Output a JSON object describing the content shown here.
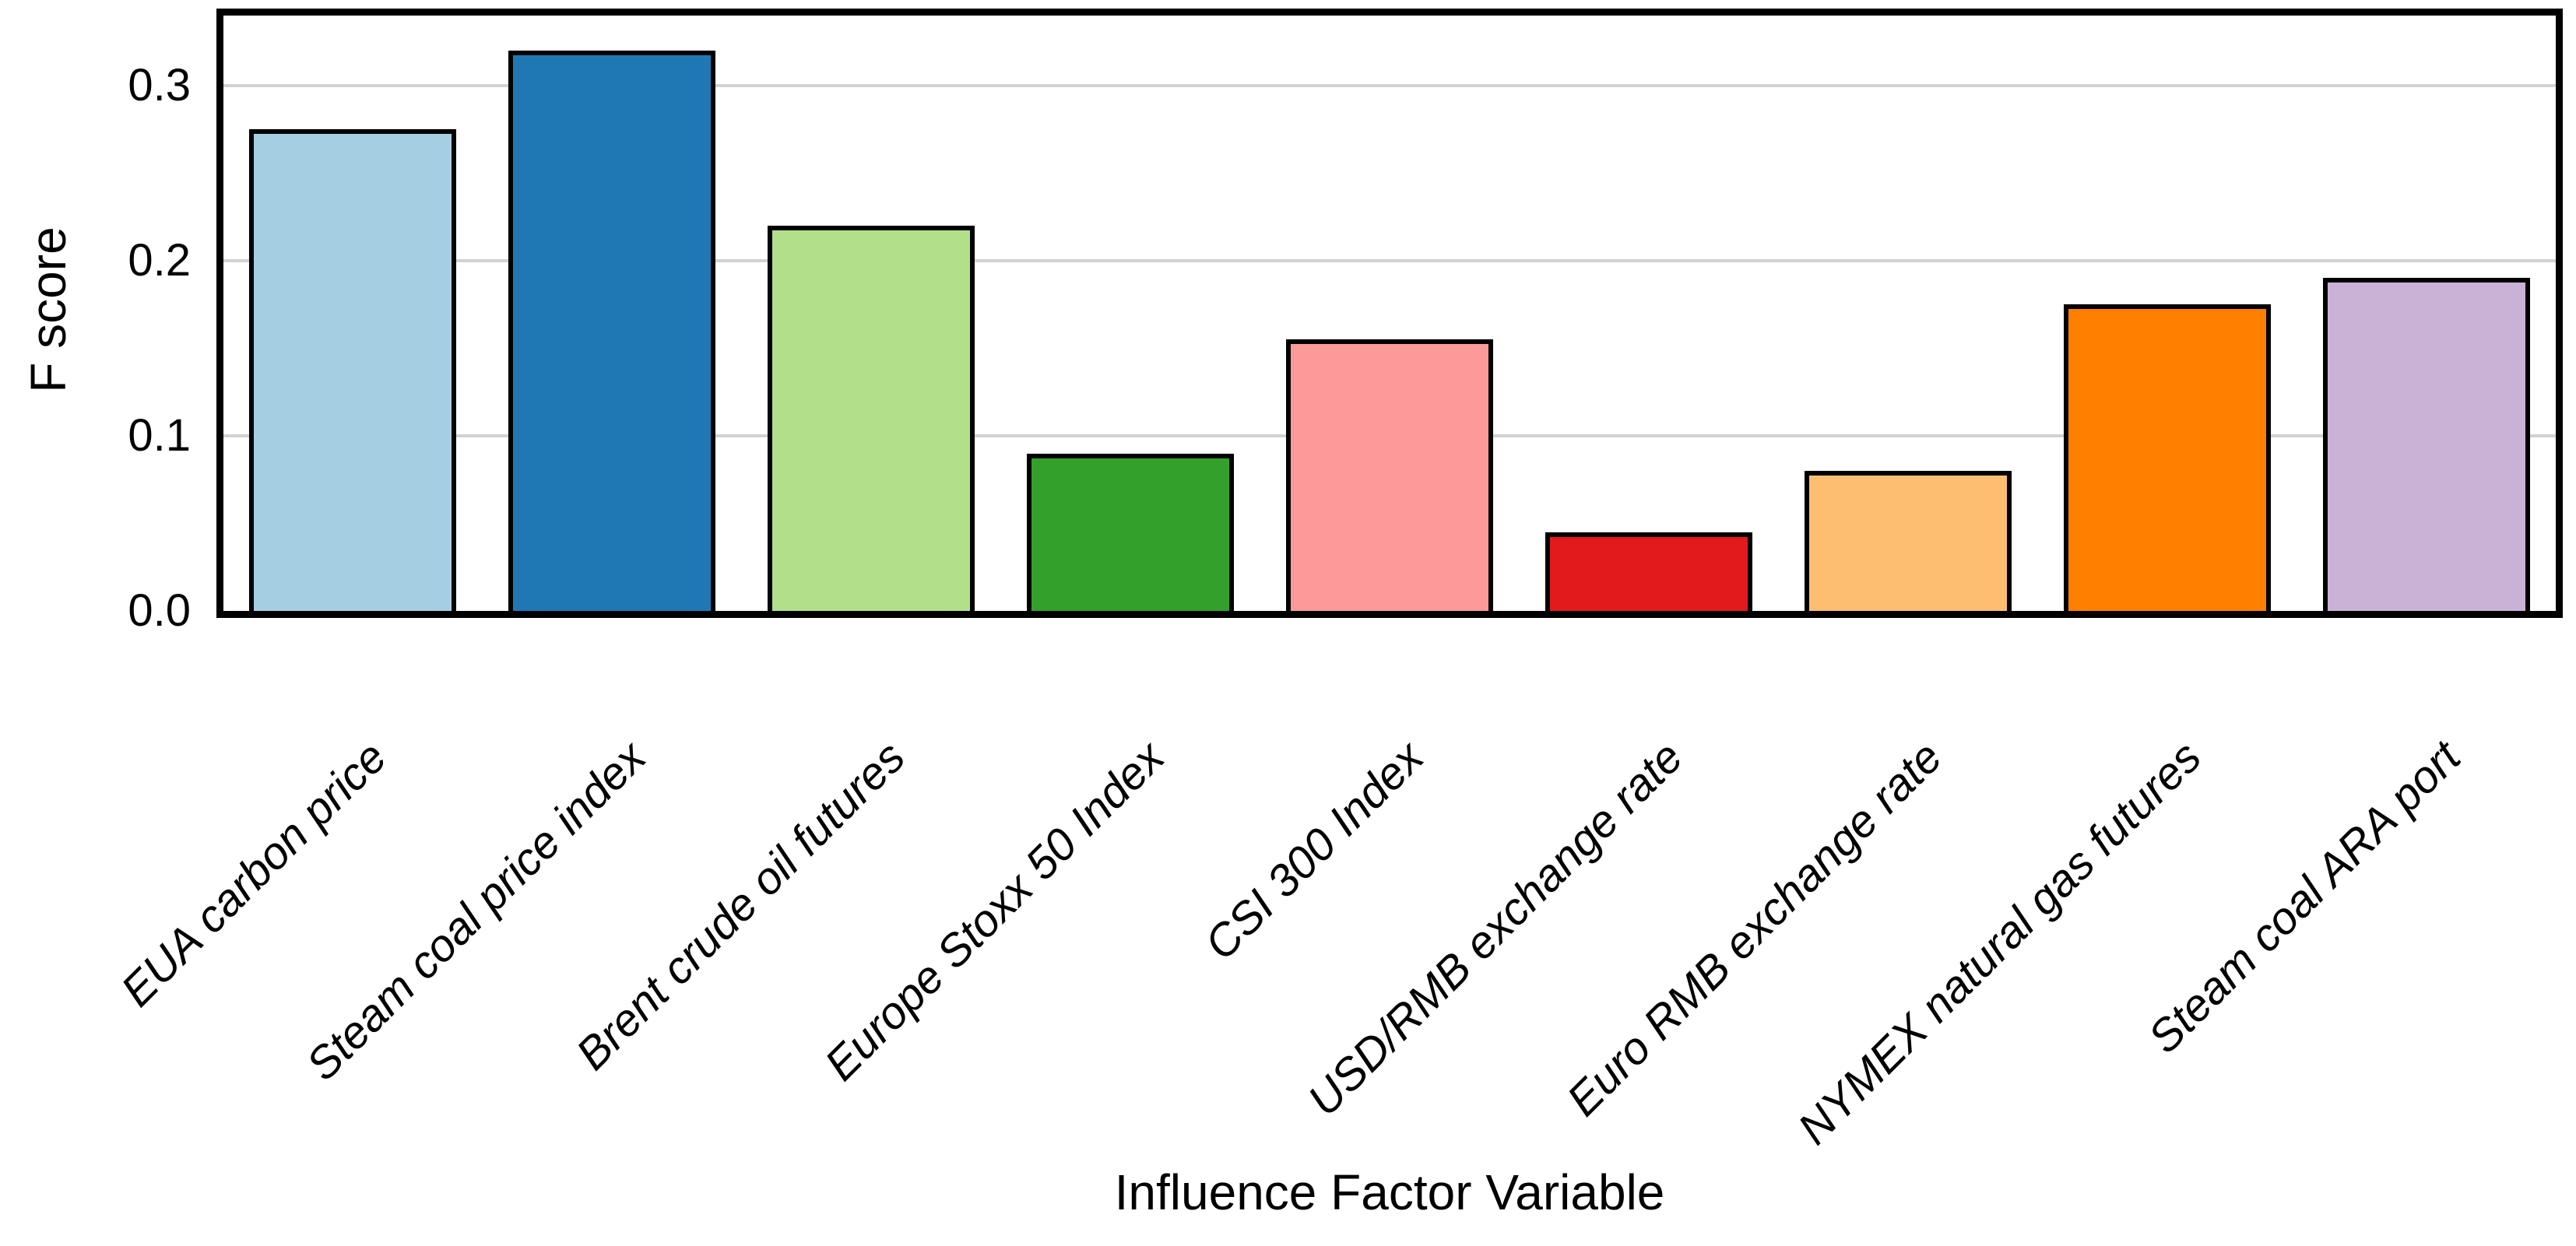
{
  "chart_data": {
    "type": "bar",
    "title": "",
    "xlabel": "Influence Factor Variable",
    "ylabel": "F score",
    "categories": [
      "EUA carbon price",
      "Steam coal price index",
      "Brent crude oil futures",
      "Europe Stoxx 50 Index",
      "CSI 300 Index",
      "USD/RMB exchange rate",
      "Euro RMB exchange rate",
      "NYMEX natural gas futures",
      "Steam coal ARA port"
    ],
    "values": [
      0.275,
      0.32,
      0.22,
      0.09,
      0.155,
      0.045,
      0.08,
      0.175,
      0.19
    ],
    "bar_colors": [
      "#a6cee3",
      "#1f78b4",
      "#b2df8a",
      "#33a02c",
      "#fb9a99",
      "#e31a1c",
      "#fdbf6f",
      "#ff7f00",
      "#cab2d6"
    ],
    "bar_edge_color": "#000000",
    "ytick_labels": [
      "0.0",
      "0.1",
      "0.2",
      "0.3"
    ],
    "ytick_values": [
      0.0,
      0.1,
      0.2,
      0.3
    ],
    "gridline_values": [
      0.1,
      0.2,
      0.3
    ],
    "gridline_color": "#d2d2d2",
    "ylim": [
      0,
      0.34
    ],
    "grid": "horizontal",
    "legend": "none",
    "xtick_style": "italic, rotated 45deg"
  }
}
